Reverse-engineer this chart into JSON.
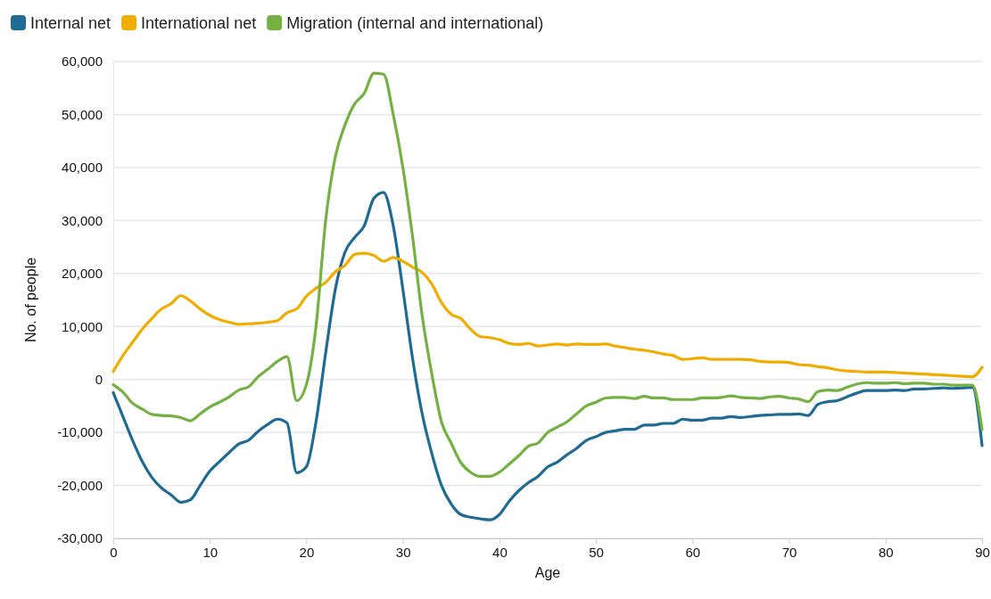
{
  "chart_data": {
    "type": "line",
    "xlabel": "Age",
    "ylabel": "No. of people",
    "legend": "top left",
    "grid": "y",
    "line_style": "solid",
    "marker": "none",
    "xlim": [
      0,
      90
    ],
    "xticks": [
      0,
      10,
      20,
      30,
      40,
      50,
      60,
      70,
      80,
      90
    ],
    "ylim": [
      -30000,
      60000
    ],
    "yticks": [
      {
        "value": -30000,
        "label": "-30,000"
      },
      {
        "value": -20000,
        "label": "-20,000"
      },
      {
        "value": -10000,
        "label": "-10,000"
      },
      0,
      {
        "value": 10000,
        "label": "10,000"
      },
      {
        "value": 20000,
        "label": "20,000"
      },
      {
        "value": 30000,
        "label": "30,000"
      },
      {
        "value": 40000,
        "label": "40,000"
      },
      {
        "value": 50000,
        "label": "50,000"
      },
      {
        "value": 60000,
        "label": "60,000"
      }
    ],
    "x": [
      0,
      1,
      2,
      3,
      4,
      5,
      6,
      7,
      8,
      9,
      10,
      11,
      12,
      13,
      14,
      15,
      16,
      17,
      18,
      19,
      20,
      21,
      22,
      23,
      24,
      25,
      26,
      27,
      28,
      29,
      30,
      31,
      32,
      33,
      34,
      35,
      36,
      37,
      38,
      39,
      40,
      41,
      42,
      43,
      44,
      45,
      46,
      47,
      48,
      49,
      50,
      51,
      52,
      53,
      54,
      55,
      56,
      57,
      58,
      59,
      60,
      61,
      62,
      63,
      64,
      65,
      66,
      67,
      68,
      69,
      70,
      71,
      72,
      73,
      74,
      75,
      76,
      77,
      78,
      79,
      80,
      81,
      82,
      83,
      84,
      85,
      86,
      87,
      88,
      89,
      90
    ],
    "series": [
      {
        "name": "Internal net",
        "color": "#1f6b94",
        "values": [
          -2500,
          -7000,
          -11500,
          -15500,
          -18500,
          -20500,
          -21800,
          -23200,
          -22700,
          -20000,
          -17300,
          -15500,
          -13800,
          -12200,
          -11500,
          -9800,
          -8500,
          -7500,
          -8200,
          -17600,
          -16500,
          -8000,
          5000,
          17000,
          24000,
          26800,
          29000,
          34200,
          35300,
          29000,
          17000,
          4000,
          -6500,
          -14000,
          -20000,
          -23500,
          -25500,
          -26000,
          -26300,
          -26500,
          -25500,
          -23000,
          -21000,
          -19500,
          -18300,
          -16500,
          -15600,
          -14200,
          -13000,
          -11500,
          -10800,
          -10000,
          -9700,
          -9400,
          -9400,
          -8600,
          -8600,
          -8300,
          -8300,
          -7500,
          -7700,
          -7700,
          -7300,
          -7300,
          -7000,
          -7200,
          -7000,
          -6800,
          -6700,
          -6600,
          -6600,
          -6500,
          -6800,
          -4700,
          -4200,
          -4000,
          -3300,
          -2600,
          -2100,
          -2100,
          -2100,
          -2000,
          -2100,
          -1800,
          -1800,
          -1700,
          -1600,
          -1700,
          -1600,
          -1500,
          -12500
        ]
      },
      {
        "name": "International net",
        "color": "#f0ad00",
        "values": [
          1500,
          4500,
          7000,
          9500,
          11500,
          13300,
          14300,
          15800,
          14800,
          13300,
          12100,
          11300,
          10800,
          10400,
          10500,
          10600,
          10800,
          11100,
          12600,
          13300,
          15700,
          17200,
          18300,
          20300,
          21500,
          23600,
          23800,
          23400,
          22300,
          23000,
          22300,
          21200,
          20200,
          18000,
          14500,
          12300,
          11500,
          9500,
          8100,
          7900,
          7500,
          6800,
          6600,
          6800,
          6300,
          6500,
          6700,
          6500,
          6700,
          6600,
          6600,
          6700,
          6300,
          6000,
          5700,
          5500,
          5200,
          4800,
          4500,
          3800,
          3900,
          4100,
          3800,
          3800,
          3800,
          3800,
          3700,
          3400,
          3300,
          3300,
          3200,
          2800,
          2700,
          2400,
          2200,
          1800,
          1600,
          1500,
          1400,
          1400,
          1400,
          1300,
          1200,
          1100,
          1000,
          900,
          800,
          700,
          600,
          500,
          2300
        ]
      },
      {
        "name": "Migration (internal and international)",
        "color": "#75b043",
        "values": [
          -1000,
          -2400,
          -4500,
          -5600,
          -6600,
          -6800,
          -6900,
          -7200,
          -7800,
          -6500,
          -5200,
          -4300,
          -3300,
          -2000,
          -1400,
          500,
          1900,
          3400,
          4300,
          -4000,
          -1000,
          10000,
          30000,
          42000,
          48000,
          52000,
          54000,
          57800,
          57600,
          50000,
          40000,
          27000,
          12000,
          1000,
          -8000,
          -12000,
          -15700,
          -17500,
          -18300,
          -18300,
          -17500,
          -16000,
          -14400,
          -12600,
          -12000,
          -10000,
          -9000,
          -8000,
          -6500,
          -5000,
          -4300,
          -3500,
          -3400,
          -3400,
          -3600,
          -3200,
          -3500,
          -3500,
          -3800,
          -3800,
          -3800,
          -3500,
          -3500,
          -3400,
          -3100,
          -3400,
          -3500,
          -3600,
          -3300,
          -3200,
          -3500,
          -3700,
          -4200,
          -2300,
          -2000,
          -2100,
          -1500,
          -900,
          -600,
          -700,
          -700,
          -600,
          -800,
          -700,
          -700,
          -900,
          -900,
          -1100,
          -1100,
          -1100,
          -9500
        ]
      }
    ]
  }
}
